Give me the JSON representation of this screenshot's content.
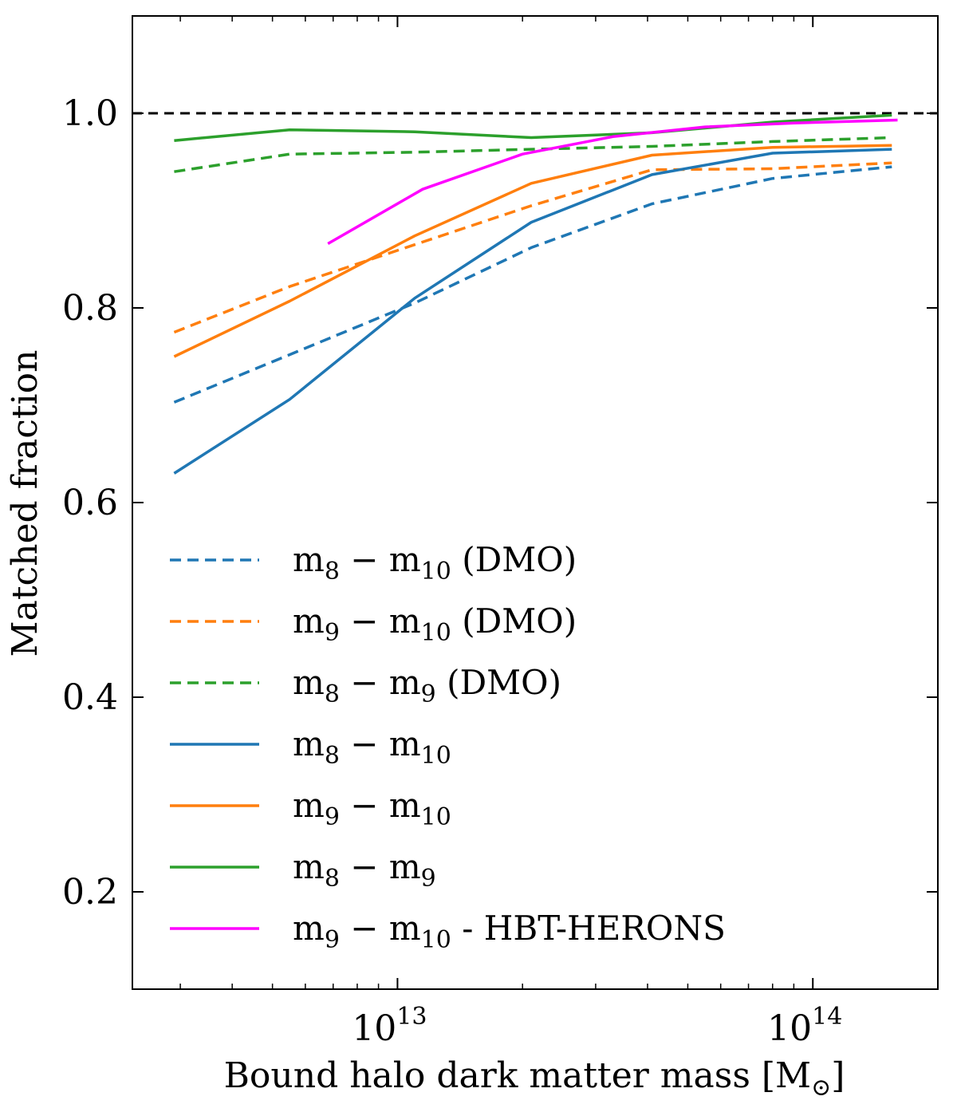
{
  "chart_data": {
    "type": "line",
    "xscale": "log",
    "xlabel": "Bound halo dark matter mass [M",
    "xlabel_unit_symbol": "⊙",
    "xlabel_close": "]",
    "ylabel": "Matched fraction",
    "xlim": [
      2300000000000.0,
      200000000000000.0
    ],
    "ylim": [
      0.1,
      1.1
    ],
    "xticks": [
      {
        "value": 10000000000000.0,
        "base": "10",
        "exp": "13"
      },
      {
        "value": 100000000000000.0,
        "base": "10",
        "exp": "14"
      }
    ],
    "yticks": [
      {
        "value": 0.2,
        "label": "0.2"
      },
      {
        "value": 0.4,
        "label": "0.4"
      },
      {
        "value": 0.6,
        "label": "0.6"
      },
      {
        "value": 0.8,
        "label": "0.8"
      },
      {
        "value": 1.0,
        "label": "1.0"
      }
    ],
    "reference_line": {
      "y": 1.0,
      "color": "#000000",
      "style": "dashed"
    },
    "legend_location": "lower-left",
    "series": [
      {
        "id": "m8-m10-dmo",
        "a": "m",
        "a_sub": "8",
        "b": "m",
        "b_sub": "10",
        "suffix": " (DMO)",
        "color": "#1f77b4",
        "style": "dashed",
        "x": [
          2900000000000.0,
          5500000000000.0,
          11000000000000.0,
          21000000000000.0,
          41000000000000.0,
          80000000000000.0,
          155000000000000.0
        ],
        "y": [
          0.703,
          0.752,
          0.805,
          0.862,
          0.907,
          0.933,
          0.945
        ]
      },
      {
        "id": "m9-m10-dmo",
        "a": "m",
        "a_sub": "9",
        "b": "m",
        "b_sub": "10",
        "suffix": " (DMO)",
        "color": "#ff7f0e",
        "style": "dashed",
        "x": [
          2900000000000.0,
          5500000000000.0,
          11000000000000.0,
          21000000000000.0,
          41000000000000.0,
          80000000000000.0,
          155000000000000.0
        ],
        "y": [
          0.775,
          0.822,
          0.865,
          0.905,
          0.942,
          0.943,
          0.949
        ]
      },
      {
        "id": "m8-m9-dmo",
        "a": "m",
        "a_sub": "8",
        "b": "m",
        "b_sub": "9",
        "suffix": " (DMO)",
        "color": "#2ca02c",
        "style": "dashed",
        "x": [
          2900000000000.0,
          5500000000000.0,
          11000000000000.0,
          21000000000000.0,
          41000000000000.0,
          80000000000000.0,
          155000000000000.0
        ],
        "y": [
          0.94,
          0.958,
          0.96,
          0.963,
          0.966,
          0.971,
          0.975
        ]
      },
      {
        "id": "m8-m10",
        "a": "m",
        "a_sub": "8",
        "b": "m",
        "b_sub": "10",
        "suffix": "",
        "color": "#1f77b4",
        "style": "solid",
        "x": [
          2900000000000.0,
          5500000000000.0,
          11000000000000.0,
          21000000000000.0,
          41000000000000.0,
          80000000000000.0,
          155000000000000.0
        ],
        "y": [
          0.63,
          0.706,
          0.81,
          0.888,
          0.937,
          0.959,
          0.963
        ]
      },
      {
        "id": "m9-m10",
        "a": "m",
        "a_sub": "9",
        "b": "m",
        "b_sub": "10",
        "suffix": "",
        "color": "#ff7f0e",
        "style": "solid",
        "x": [
          2900000000000.0,
          5500000000000.0,
          11000000000000.0,
          21000000000000.0,
          41000000000000.0,
          80000000000000.0,
          155000000000000.0
        ],
        "y": [
          0.75,
          0.807,
          0.874,
          0.928,
          0.957,
          0.965,
          0.967
        ]
      },
      {
        "id": "m8-m9",
        "a": "m",
        "a_sub": "8",
        "b": "m",
        "b_sub": "9",
        "suffix": "",
        "color": "#2ca02c",
        "style": "solid",
        "x": [
          2900000000000.0,
          5500000000000.0,
          11000000000000.0,
          21000000000000.0,
          41000000000000.0,
          80000000000000.0,
          155000000000000.0
        ],
        "y": [
          0.972,
          0.983,
          0.981,
          0.975,
          0.98,
          0.991,
          0.998
        ]
      },
      {
        "id": "m9-m10-hbt",
        "a": "m",
        "a_sub": "9",
        "b": "m",
        "b_sub": "10",
        "suffix": " - HBT-HERONS",
        "color": "#ff00ff",
        "style": "solid",
        "x": [
          6800000000000.0,
          11500000000000.0,
          20000000000000.0,
          33000000000000.0,
          55000000000000.0,
          90000000000000.0,
          160000000000000.0
        ],
        "y": [
          0.866,
          0.922,
          0.958,
          0.976,
          0.986,
          0.99,
          0.993
        ]
      }
    ]
  }
}
